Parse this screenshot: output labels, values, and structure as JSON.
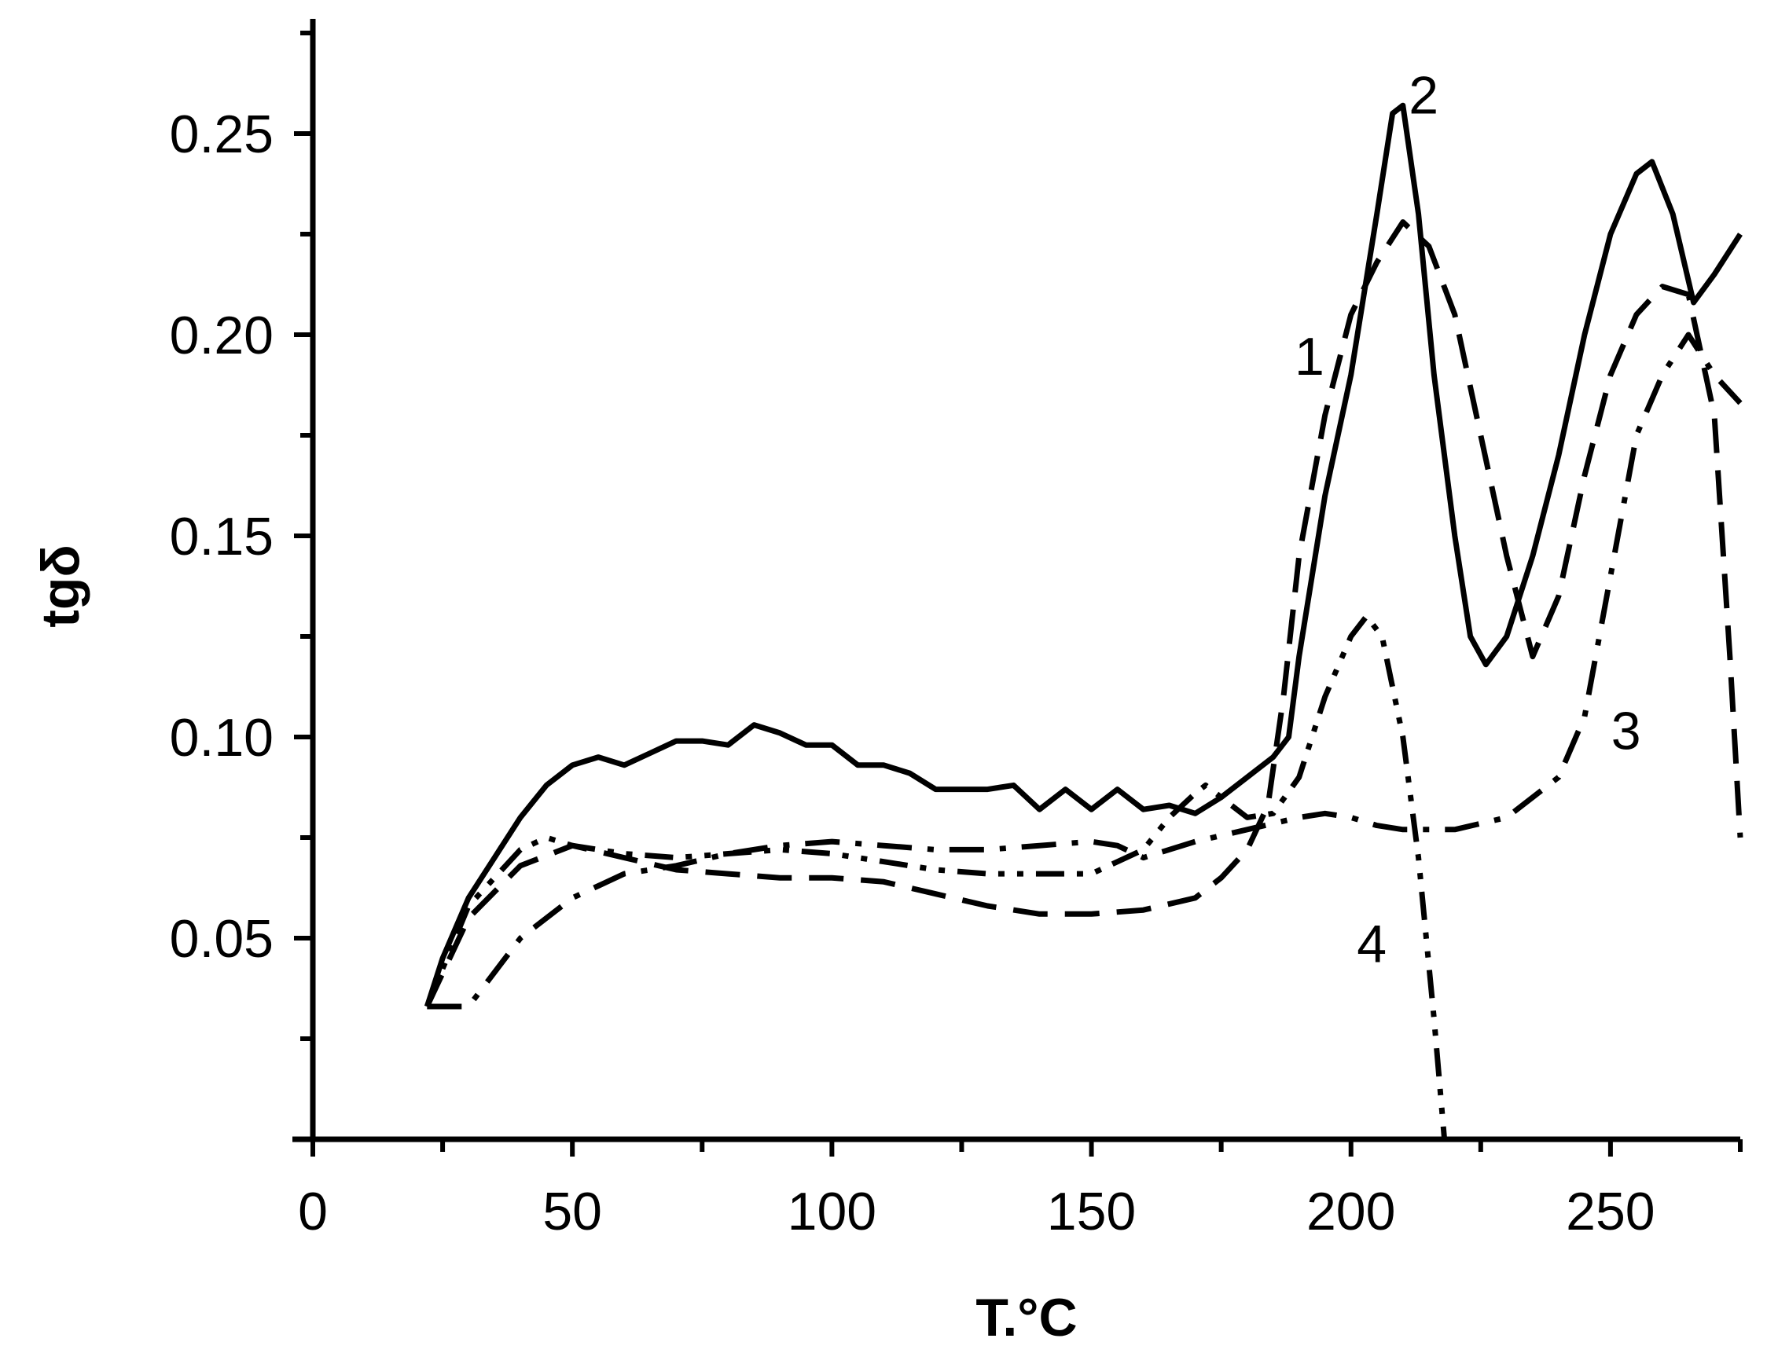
{
  "chart_data": {
    "type": "line",
    "title": "",
    "xlabel": "T.°C",
    "ylabel": "tgδ",
    "xlim": [
      0,
      275
    ],
    "ylim": [
      0,
      0.275
    ],
    "x_ticks": [
      0,
      50,
      100,
      150,
      200,
      250
    ],
    "x_tick_labels": [
      "0",
      "50",
      "100",
      "150",
      "200",
      "250"
    ],
    "y_ticks": [
      0.05,
      0.1,
      0.15,
      0.2,
      0.25
    ],
    "y_tick_labels": [
      "0.05",
      "0.10",
      "0.15",
      "0.20",
      "0.25"
    ],
    "grid": false,
    "series": [
      {
        "label": "1",
        "style": "dashed",
        "label_pos": [
          192,
          0.19
        ],
        "points": [
          [
            22,
            0.033
          ],
          [
            30,
            0.055
          ],
          [
            40,
            0.068
          ],
          [
            50,
            0.073
          ],
          [
            60,
            0.07
          ],
          [
            70,
            0.067
          ],
          [
            80,
            0.066
          ],
          [
            90,
            0.065
          ],
          [
            100,
            0.065
          ],
          [
            110,
            0.064
          ],
          [
            120,
            0.061
          ],
          [
            130,
            0.058
          ],
          [
            140,
            0.056
          ],
          [
            150,
            0.056
          ],
          [
            160,
            0.057
          ],
          [
            170,
            0.06
          ],
          [
            175,
            0.065
          ],
          [
            180,
            0.072
          ],
          [
            184,
            0.083
          ],
          [
            187,
            0.11
          ],
          [
            190,
            0.145
          ],
          [
            195,
            0.18
          ],
          [
            200,
            0.205
          ],
          [
            205,
            0.218
          ],
          [
            210,
            0.228
          ],
          [
            215,
            0.222
          ],
          [
            220,
            0.205
          ],
          [
            225,
            0.175
          ],
          [
            230,
            0.145
          ],
          [
            235,
            0.12
          ],
          [
            240,
            0.135
          ],
          [
            245,
            0.165
          ],
          [
            250,
            0.19
          ],
          [
            255,
            0.205
          ],
          [
            260,
            0.212
          ],
          [
            265,
            0.21
          ],
          [
            270,
            0.18
          ],
          [
            273,
            0.12
          ],
          [
            275,
            0.075
          ]
        ]
      },
      {
        "label": "2",
        "style": "solid",
        "label_pos": [
          214,
          0.255
        ],
        "points": [
          [
            22,
            0.033
          ],
          [
            25,
            0.045
          ],
          [
            30,
            0.06
          ],
          [
            35,
            0.07
          ],
          [
            40,
            0.08
          ],
          [
            45,
            0.088
          ],
          [
            50,
            0.093
          ],
          [
            55,
            0.095
          ],
          [
            60,
            0.093
          ],
          [
            65,
            0.096
          ],
          [
            70,
            0.099
          ],
          [
            75,
            0.099
          ],
          [
            80,
            0.098
          ],
          [
            85,
            0.103
          ],
          [
            90,
            0.101
          ],
          [
            95,
            0.098
          ],
          [
            100,
            0.098
          ],
          [
            105,
            0.093
          ],
          [
            110,
            0.093
          ],
          [
            115,
            0.091
          ],
          [
            120,
            0.087
          ],
          [
            125,
            0.087
          ],
          [
            130,
            0.087
          ],
          [
            135,
            0.088
          ],
          [
            140,
            0.082
          ],
          [
            145,
            0.087
          ],
          [
            150,
            0.082
          ],
          [
            155,
            0.087
          ],
          [
            160,
            0.082
          ],
          [
            165,
            0.083
          ],
          [
            170,
            0.081
          ],
          [
            175,
            0.085
          ],
          [
            180,
            0.09
          ],
          [
            185,
            0.095
          ],
          [
            188,
            0.1
          ],
          [
            190,
            0.12
          ],
          [
            195,
            0.16
          ],
          [
            200,
            0.19
          ],
          [
            205,
            0.23
          ],
          [
            208,
            0.255
          ],
          [
            210,
            0.257
          ],
          [
            213,
            0.23
          ],
          [
            216,
            0.19
          ],
          [
            220,
            0.15
          ],
          [
            223,
            0.125
          ],
          [
            226,
            0.118
          ],
          [
            230,
            0.125
          ],
          [
            235,
            0.145
          ],
          [
            240,
            0.17
          ],
          [
            245,
            0.2
          ],
          [
            250,
            0.225
          ],
          [
            255,
            0.24
          ],
          [
            258,
            0.243
          ],
          [
            262,
            0.23
          ],
          [
            266,
            0.208
          ],
          [
            270,
            0.215
          ],
          [
            275,
            0.225
          ]
        ]
      },
      {
        "label": "3",
        "style": "dash-dot",
        "label_pos": [
          253,
          0.097
        ],
        "points": [
          [
            22,
            0.033
          ],
          [
            30,
            0.033
          ],
          [
            40,
            0.05
          ],
          [
            50,
            0.06
          ],
          [
            60,
            0.066
          ],
          [
            70,
            0.068
          ],
          [
            80,
            0.071
          ],
          [
            90,
            0.073
          ],
          [
            100,
            0.074
          ],
          [
            110,
            0.073
          ],
          [
            120,
            0.072
          ],
          [
            130,
            0.072
          ],
          [
            140,
            0.073
          ],
          [
            150,
            0.074
          ],
          [
            155,
            0.073
          ],
          [
            160,
            0.07
          ],
          [
            170,
            0.074
          ],
          [
            180,
            0.077
          ],
          [
            190,
            0.08
          ],
          [
            195,
            0.081
          ],
          [
            200,
            0.08
          ],
          [
            205,
            0.078
          ],
          [
            210,
            0.077
          ],
          [
            220,
            0.077
          ],
          [
            230,
            0.08
          ],
          [
            240,
            0.09
          ],
          [
            245,
            0.105
          ],
          [
            250,
            0.14
          ],
          [
            255,
            0.175
          ],
          [
            260,
            0.19
          ],
          [
            265,
            0.2
          ],
          [
            270,
            0.19
          ],
          [
            275,
            0.183
          ]
        ]
      },
      {
        "label": "4",
        "style": "dash-dot-dot",
        "label_pos": [
          204,
          0.044
        ],
        "points": [
          [
            22,
            0.033
          ],
          [
            30,
            0.058
          ],
          [
            40,
            0.072
          ],
          [
            45,
            0.075
          ],
          [
            50,
            0.073
          ],
          [
            60,
            0.071
          ],
          [
            70,
            0.07
          ],
          [
            80,
            0.071
          ],
          [
            90,
            0.072
          ],
          [
            100,
            0.071
          ],
          [
            110,
            0.069
          ],
          [
            120,
            0.067
          ],
          [
            130,
            0.066
          ],
          [
            140,
            0.066
          ],
          [
            150,
            0.066
          ],
          [
            160,
            0.072
          ],
          [
            165,
            0.08
          ],
          [
            170,
            0.086
          ],
          [
            172,
            0.088
          ],
          [
            175,
            0.085
          ],
          [
            180,
            0.08
          ],
          [
            185,
            0.081
          ],
          [
            190,
            0.09
          ],
          [
            195,
            0.11
          ],
          [
            200,
            0.125
          ],
          [
            203,
            0.13
          ],
          [
            206,
            0.125
          ],
          [
            210,
            0.1
          ],
          [
            213,
            0.07
          ],
          [
            216,
            0.03
          ],
          [
            218,
            0.0
          ]
        ]
      }
    ]
  }
}
